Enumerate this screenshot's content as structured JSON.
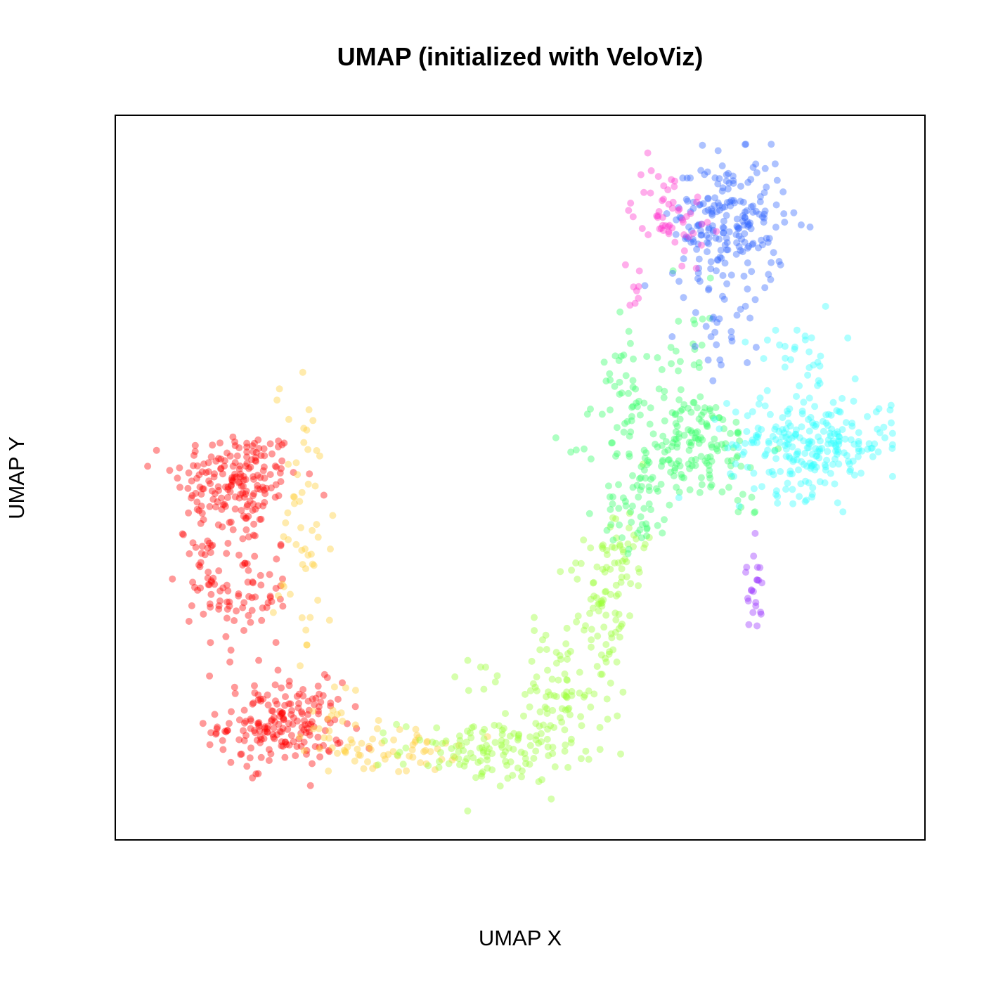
{
  "chart_data": {
    "type": "scatter",
    "title": "UMAP (initialized with VeloViz)",
    "xlabel": "UMAP X",
    "ylabel": "UMAP Y",
    "xlim": [
      0,
      100
    ],
    "ylim": [
      0,
      100
    ],
    "axis_ticks": false,
    "grid": false,
    "point_alpha": 0.4,
    "series": [
      {
        "color": "#FF0000",
        "regions": [
          {
            "cx": 12,
            "cy": 50,
            "sx": 4.2,
            "sy": 3.6,
            "n": 170
          },
          {
            "cx": 13,
            "cy": 33,
            "sx": 3.0,
            "sy": 5.5,
            "n": 80
          },
          {
            "cx": 18,
            "cy": 13,
            "sx": 4.2,
            "sy": 3.2,
            "n": 190
          },
          {
            "cx": 8,
            "cy": 38,
            "sx": 2.0,
            "sy": 4.5,
            "n": 40
          }
        ]
      },
      {
        "color": "#FFCC33",
        "regions": [
          {
            "cx": 21,
            "cy": 42,
            "sx": 2.0,
            "sy": 12.0,
            "n": 55
          },
          {
            "cx": 33,
            "cy": 9,
            "sx": 4.2,
            "sy": 1.6,
            "n": 55
          },
          {
            "cx": 25,
            "cy": 14,
            "sx": 2.0,
            "sy": 3.0,
            "n": 20
          }
        ]
      },
      {
        "color": "#99FF33",
        "regions": [
          {
            "cx": 46,
            "cy": 9,
            "sx": 6.0,
            "sy": 2.4,
            "n": 120
          },
          {
            "cx": 55,
            "cy": 17,
            "sx": 3.0,
            "sy": 5.0,
            "n": 80
          },
          {
            "cx": 61,
            "cy": 30,
            "sx": 2.2,
            "sy": 6.0,
            "n": 70
          },
          {
            "cx": 64,
            "cy": 40,
            "sx": 1.5,
            "sy": 3.5,
            "n": 35
          },
          {
            "cx": 45,
            "cy": 20,
            "sx": 2.5,
            "sy": 1.5,
            "n": 8
          }
        ]
      },
      {
        "color": "#33FF66",
        "regions": [
          {
            "cx": 72,
            "cy": 55,
            "sx": 5.5,
            "sy": 4.0,
            "n": 170
          },
          {
            "cx": 66,
            "cy": 45,
            "sx": 2.5,
            "sy": 3.0,
            "n": 50
          },
          {
            "cx": 64,
            "cy": 67,
            "sx": 1.2,
            "sy": 5.0,
            "n": 25
          },
          {
            "cx": 72,
            "cy": 68,
            "sx": 2.5,
            "sy": 6.0,
            "n": 30
          },
          {
            "cx": 81,
            "cy": 45,
            "sx": 1.0,
            "sy": 2.0,
            "n": 6
          }
        ]
      },
      {
        "color": "#33FFFF",
        "regions": [
          {
            "cx": 89,
            "cy": 55,
            "sx": 5.5,
            "sy": 3.8,
            "n": 250
          },
          {
            "cx": 87,
            "cy": 70,
            "sx": 2.8,
            "sy": 3.5,
            "n": 25
          }
        ]
      },
      {
        "color": "#3366FF",
        "regions": [
          {
            "cx": 78,
            "cy": 88,
            "sx": 3.8,
            "sy": 5.0,
            "n": 210
          },
          {
            "cx": 77,
            "cy": 72,
            "sx": 2.2,
            "sy": 3.5,
            "n": 25
          }
        ]
      },
      {
        "color": "#FF33CC",
        "regions": [
          {
            "cx": 70,
            "cy": 90,
            "sx": 2.5,
            "sy": 3.5,
            "n": 55
          },
          {
            "cx": 65,
            "cy": 79,
            "sx": 0.7,
            "sy": 2.0,
            "n": 8
          }
        ]
      },
      {
        "color": "#9933FF",
        "regions": [
          {
            "cx": 81.5,
            "cy": 33,
            "sx": 0.6,
            "sy": 3.0,
            "n": 22
          }
        ]
      }
    ]
  }
}
